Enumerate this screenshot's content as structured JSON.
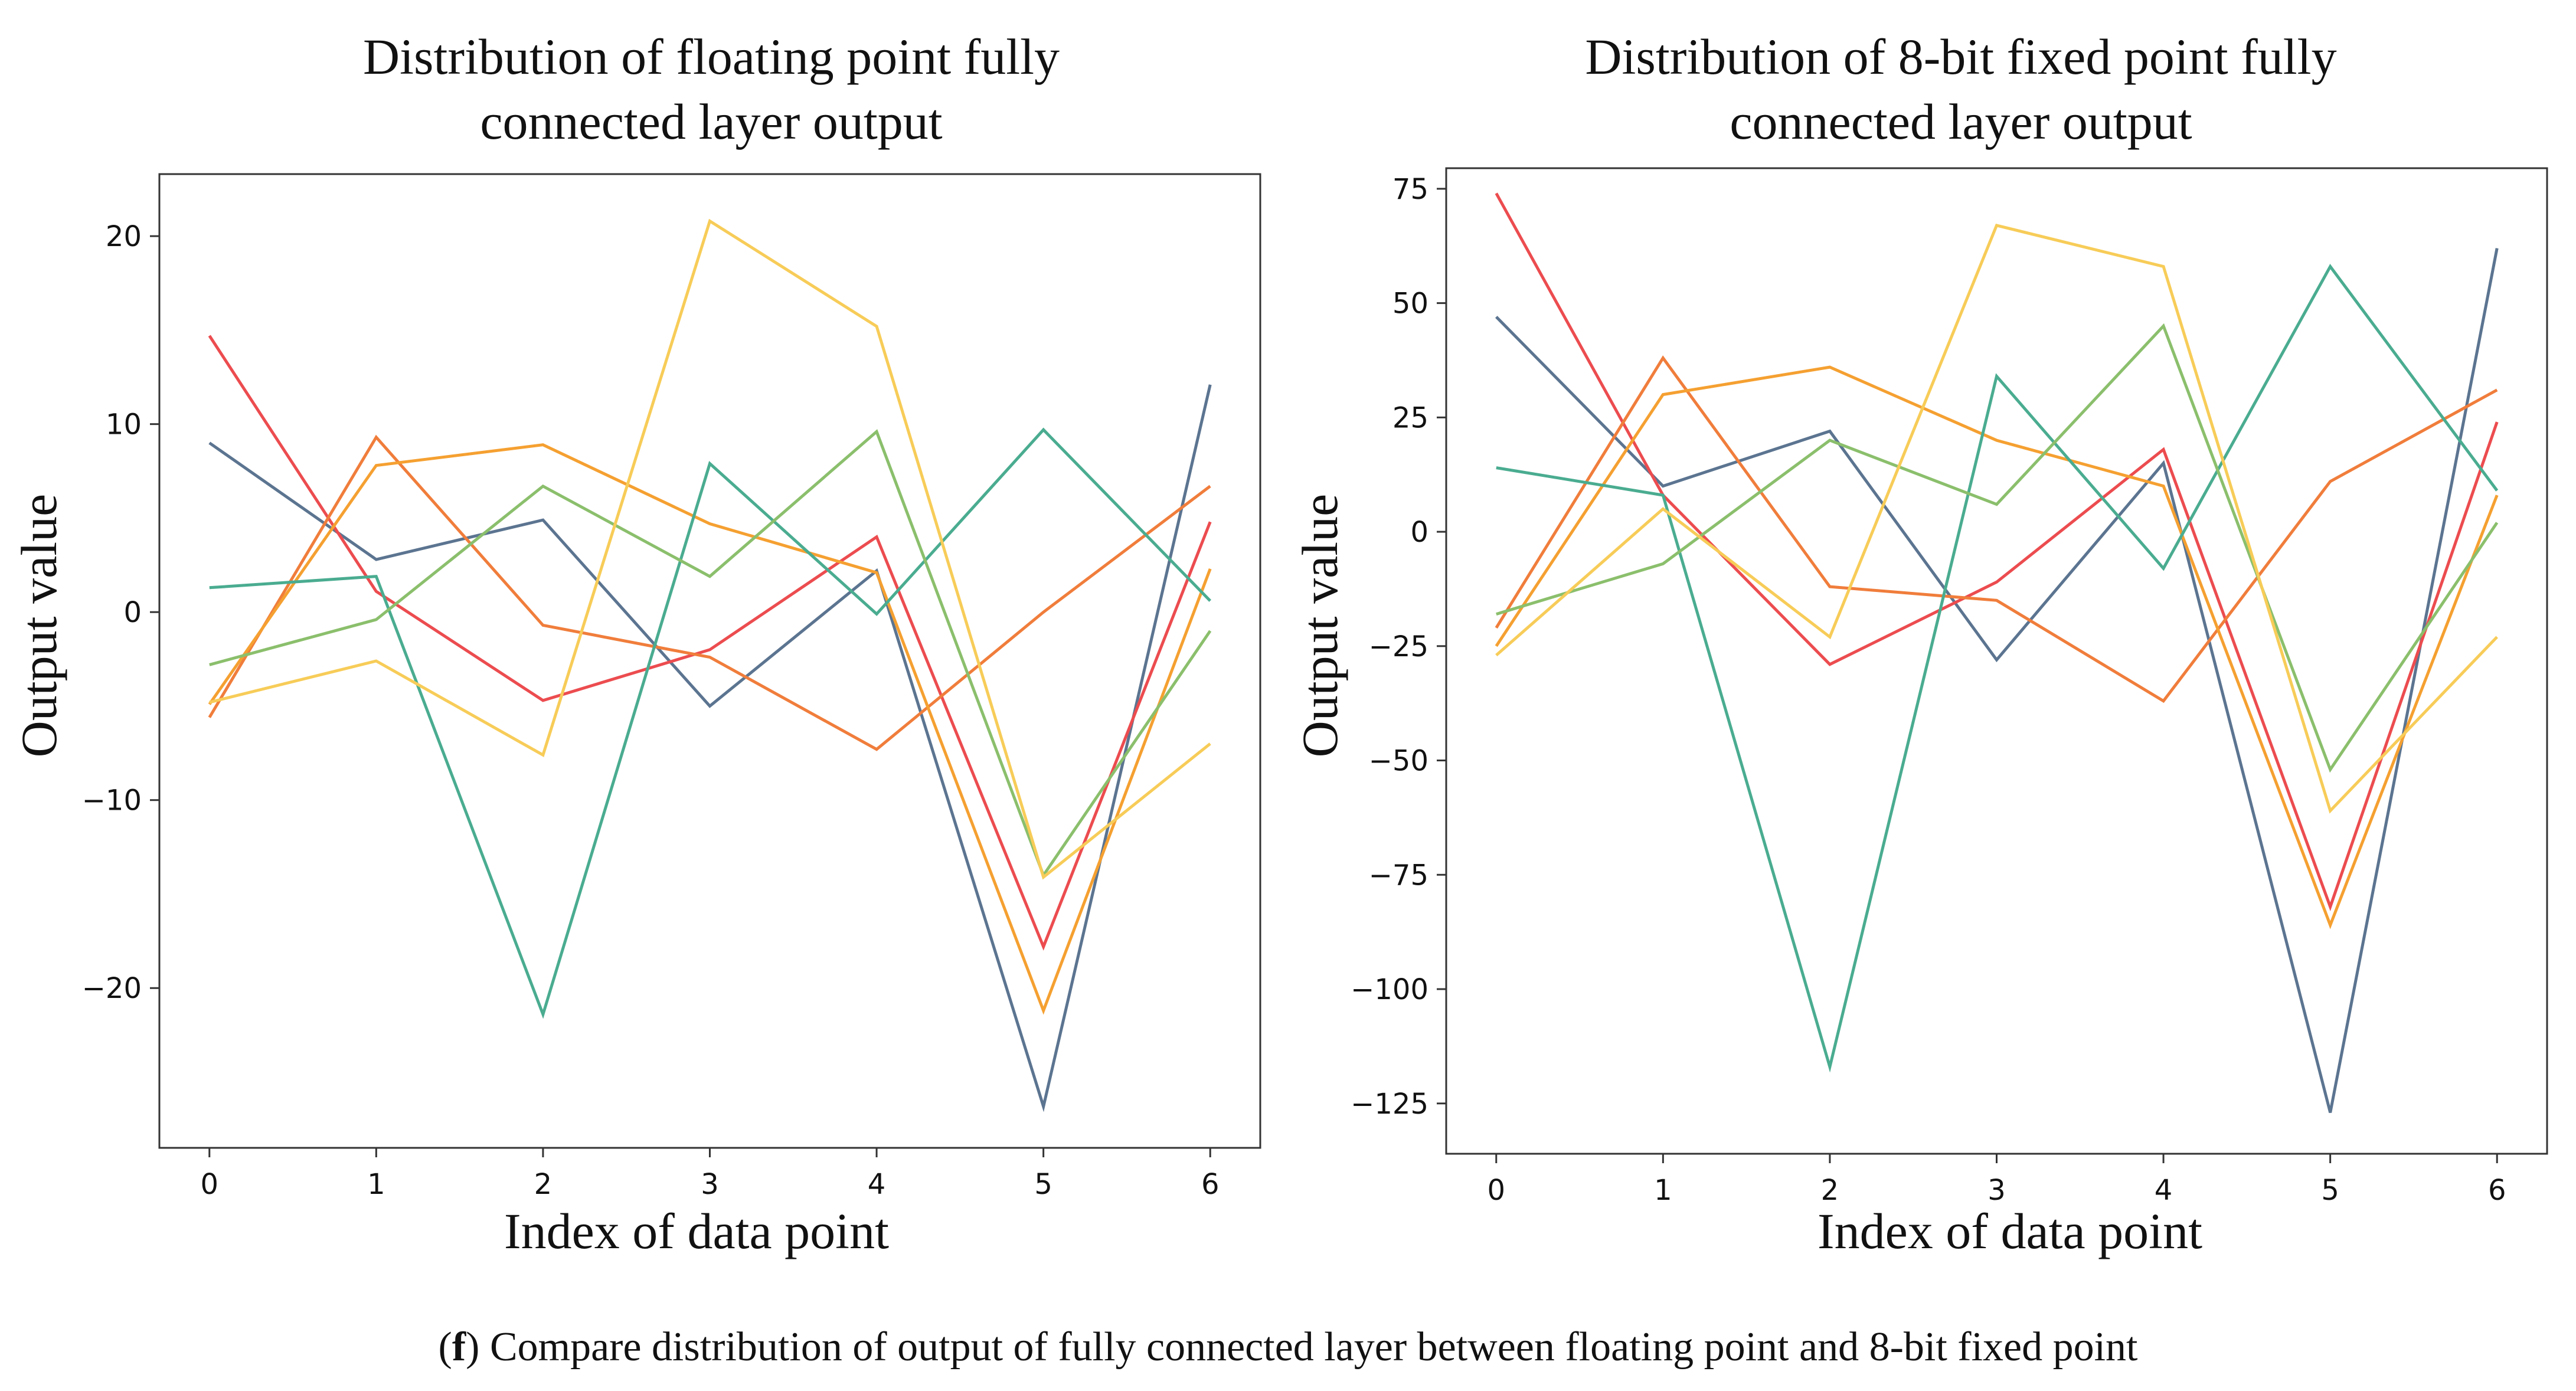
{
  "chart_data": [
    {
      "type": "line",
      "title_lines": [
        "Distribution of floating point fully",
        "connected layer output"
      ],
      "xlabel": "Index of data point",
      "ylabel": "Output value",
      "x": [
        0,
        1,
        2,
        3,
        4,
        5,
        6
      ],
      "xlim": [
        -0.3,
        6.3
      ],
      "ylim": [
        -28.5,
        23.3
      ],
      "xticks": [
        0,
        1,
        2,
        3,
        4,
        5,
        6
      ],
      "yticks": [
        -20,
        -10,
        0,
        10,
        20
      ],
      "ytick_labels": [
        "−20",
        "−10",
        "0",
        "10",
        "20"
      ],
      "grid": false,
      "series": [
        {
          "name": "slate",
          "color": "#5b7490",
          "values": [
            9,
            2.8,
            4.9,
            -5,
            2.2,
            -26.3,
            12.1
          ]
        },
        {
          "name": "red",
          "color": "#ec4c4f",
          "values": [
            14.7,
            1.1,
            -4.7,
            -2,
            4,
            -17.8,
            4.8
          ]
        },
        {
          "name": "dark-orange",
          "color": "#f07d3b",
          "values": [
            -5.6,
            9.3,
            -0.7,
            -2.4,
            -7.3,
            0,
            6.7
          ]
        },
        {
          "name": "orange",
          "color": "#f5a031",
          "values": [
            -4.9,
            7.8,
            8.9,
            4.7,
            2.1,
            -21.2,
            2.3
          ]
        },
        {
          "name": "teal",
          "color": "#4aac90",
          "values": [
            1.3,
            1.9,
            -21.4,
            7.9,
            -0.1,
            9.7,
            0.6
          ]
        },
        {
          "name": "green",
          "color": "#8bbf6c",
          "values": [
            -2.8,
            -0.4,
            6.7,
            1.9,
            9.6,
            -14,
            -1
          ]
        },
        {
          "name": "yellow",
          "color": "#f7cc58",
          "values": [
            -4.8,
            -2.6,
            -7.6,
            20.8,
            15.2,
            -14.1,
            -7
          ]
        }
      ]
    },
    {
      "type": "line",
      "title_lines": [
        "Distribution of 8-bit fixed point fully",
        "connected layer output"
      ],
      "xlabel": "Index of data point",
      "ylabel": "Output value",
      "x": [
        0,
        1,
        2,
        3,
        4,
        5,
        6
      ],
      "xlim": [
        -0.3,
        6.3
      ],
      "ylim": [
        -136,
        79.5
      ],
      "xticks": [
        0,
        1,
        2,
        3,
        4,
        5,
        6
      ],
      "yticks": [
        -125,
        -100,
        -75,
        -50,
        -25,
        0,
        25,
        50,
        75
      ],
      "ytick_labels": [
        "−125",
        "−100",
        "−75",
        "−50",
        "−25",
        "0",
        "25",
        "50",
        "75"
      ],
      "grid": false,
      "series": [
        {
          "name": "slate",
          "color": "#5b7490",
          "values": [
            47,
            10,
            22,
            -28,
            15,
            -127,
            62
          ]
        },
        {
          "name": "red",
          "color": "#ec4c4f",
          "values": [
            74,
            8,
            -29,
            -11,
            18,
            -82,
            24
          ]
        },
        {
          "name": "dark-orange",
          "color": "#f07d3b",
          "values": [
            -21,
            38,
            -12,
            -15,
            -37,
            11,
            31
          ]
        },
        {
          "name": "orange",
          "color": "#f5a031",
          "values": [
            -25,
            30,
            36,
            20,
            10,
            -86,
            8
          ]
        },
        {
          "name": "teal",
          "color": "#4aac90",
          "values": [
            14,
            8,
            -117,
            34,
            -8,
            58,
            9
          ]
        },
        {
          "name": "green",
          "color": "#8bbf6c",
          "values": [
            -18,
            -7,
            20,
            6,
            45,
            -52,
            2
          ]
        },
        {
          "name": "yellow",
          "color": "#f7cc58",
          "values": [
            -27,
            5,
            -23,
            67,
            58,
            -61,
            -23
          ]
        }
      ]
    }
  ],
  "caption": {
    "label": "f",
    "text": " Compare distribution of output of fully connected layer between floating point and 8-bit fixed point"
  }
}
